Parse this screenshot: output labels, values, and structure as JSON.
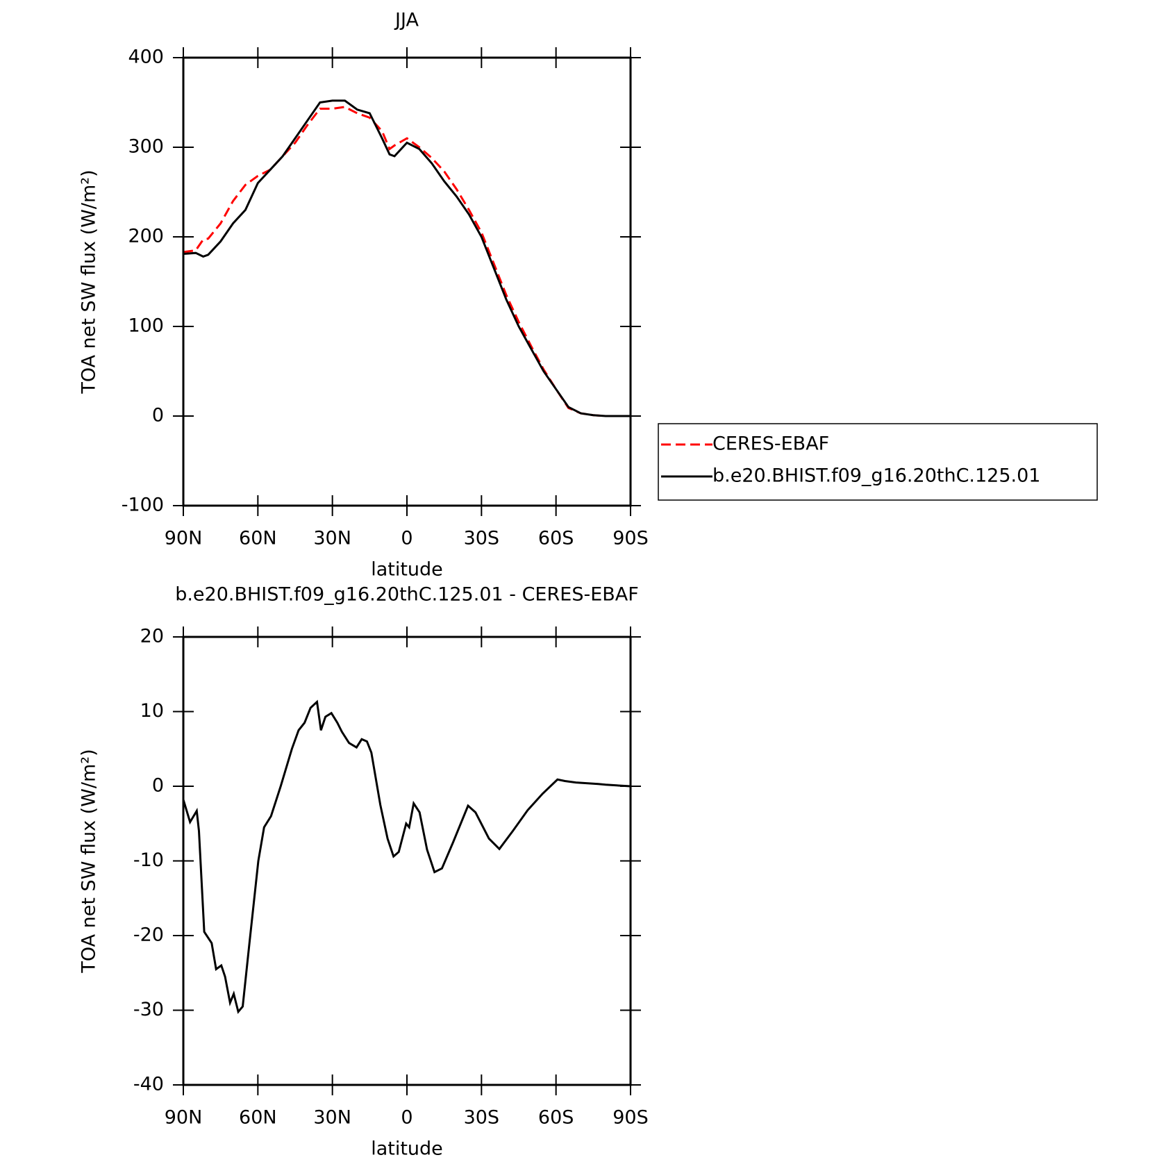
{
  "chart_data": [
    {
      "type": "line",
      "title": "JJA",
      "x_label": "latitude",
      "y_label": "TOA net SW flux (W/m²)",
      "x": [
        90,
        85,
        82,
        80,
        75,
        70,
        65,
        60,
        55,
        50,
        45,
        40,
        35,
        30,
        25,
        20,
        15,
        10,
        7,
        5,
        0,
        -5,
        -10,
        -15,
        -20,
        -25,
        -30,
        -35,
        -40,
        -45,
        -50,
        -55,
        -60,
        -65,
        -70,
        -75,
        -80,
        -85,
        -90
      ],
      "series": [
        {
          "name": "CERES-EBAF",
          "color": "#ff0000",
          "dash": true,
          "values": [
            183,
            185,
            197,
            198,
            215,
            240,
            258,
            268,
            275,
            290,
            305,
            325,
            343,
            343,
            345,
            338,
            333,
            318,
            298,
            302,
            310,
            300,
            288,
            273,
            253,
            230,
            205,
            170,
            135,
            105,
            78,
            52,
            30,
            9,
            3,
            1,
            0,
            0,
            0
          ]
        },
        {
          "name": "b.e20.BHIST.f09_g16.20thC.125.01",
          "color": "#000000",
          "dash": false,
          "values": [
            181,
            182,
            178,
            180,
            195,
            215,
            230,
            260,
            275,
            290,
            310,
            330,
            350,
            352,
            352,
            342,
            338,
            310,
            292,
            290,
            305,
            298,
            282,
            262,
            245,
            225,
            200,
            165,
            130,
            100,
            75,
            50,
            30,
            10,
            3,
            1,
            0,
            0,
            0
          ]
        }
      ],
      "xlim": [
        90,
        -90
      ],
      "xticks": [
        {
          "value": 90,
          "label": "90N"
        },
        {
          "value": 60,
          "label": "60N"
        },
        {
          "value": 30,
          "label": "30N"
        },
        0,
        {
          "value": -30,
          "label": "30S"
        },
        {
          "value": -60,
          "label": "60S"
        },
        {
          "value": -90,
          "label": "90S"
        }
      ],
      "ylim": [
        -100,
        400
      ],
      "yticks": [
        -100,
        0,
        100,
        200,
        300,
        400
      ],
      "legend": "right"
    },
    {
      "type": "line",
      "title": "b.e20.BHIST.f09_g16.20thC.125.01 - CERES-EBAF",
      "x_label": "latitude",
      "y_label": "TOA net SW flux (W/m²)",
      "color": "#000000",
      "x": [
        90,
        87.3,
        84.6,
        83.7,
        81.6,
        78.6,
        76.8,
        74.7,
        73.2,
        71.2,
        69.7,
        67.9,
        66.1,
        63.4,
        59.8,
        57.5,
        54.7,
        50.8,
        46.3,
        43.6,
        41.2,
        38.8,
        36.2,
        34.6,
        32.8,
        30.4,
        28,
        26.2,
        23.3,
        20.3,
        18.2,
        16.1,
        14.3,
        10.7,
        7.8,
        5.4,
        3.3,
        0.3,
        -0.9,
        -2.7,
        -5.1,
        -8.1,
        -11.1,
        -14.1,
        -18.6,
        -24.6,
        -27.6,
        -33,
        -37.2,
        -42.6,
        -48.6,
        -54.6,
        -60.6,
        -63.6,
        -68,
        -77,
        -80,
        -90
      ],
      "values": [
        -1.8,
        -4.8,
        -3.3,
        -6,
        -19.5,
        -21,
        -24.5,
        -24,
        -25.5,
        -29,
        -27.8,
        -30.2,
        -29.5,
        -21,
        -10,
        -5.5,
        -4,
        0,
        5,
        7.5,
        8.5,
        10.5,
        11.3,
        7.5,
        9.3,
        9.8,
        8.5,
        7.3,
        5.8,
        5.2,
        6.3,
        6,
        4.5,
        -2.5,
        -7,
        -9.4,
        -8.8,
        -5,
        -5.5,
        -2.3,
        -3.5,
        -8.5,
        -11.5,
        -11,
        -7.5,
        -2.6,
        -3.5,
        -7,
        -8.4,
        -6,
        -3.2,
        -1,
        0.9,
        0.7,
        0.5,
        0.3,
        0.2,
        0
      ],
      "xlim": [
        90,
        -90
      ],
      "xticks": [
        {
          "value": 90,
          "label": "90N"
        },
        {
          "value": 60,
          "label": "60N"
        },
        {
          "value": 30,
          "label": "30N"
        },
        0,
        {
          "value": -30,
          "label": "30S"
        },
        {
          "value": -60,
          "label": "60S"
        },
        {
          "value": -90,
          "label": "90S"
        }
      ],
      "ylim": [
        -40,
        20
      ],
      "yticks": [
        -40,
        -30,
        -20,
        -10,
        0,
        10,
        20
      ]
    }
  ]
}
